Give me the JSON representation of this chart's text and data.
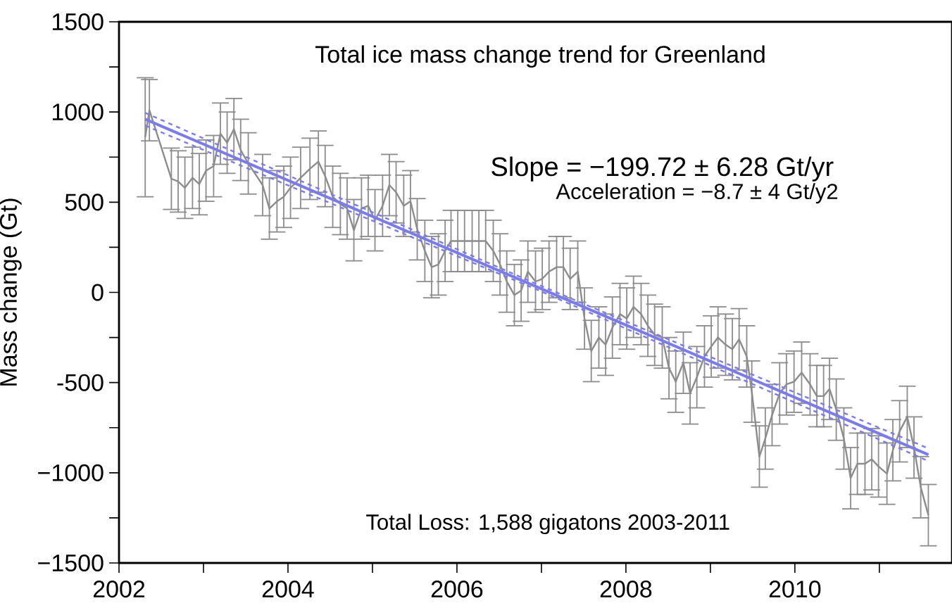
{
  "chart_data": {
    "type": "line",
    "title": "Total ice mass change trend for Greenland",
    "ylabel": "Mass change (Gt)",
    "annotations": [
      "Slope = −199.72 ± 6.28 Gt/yr",
      "Acceleration = −8.7 ± 4 Gt/y2",
      "Total Loss: 1,588 gigatons 2003-2011"
    ],
    "xlim": [
      2002,
      2011.86
    ],
    "ylim": [
      -1500,
      1500
    ],
    "xticks": [
      2002,
      {
        "value": 2003,
        "label": null
      },
      2004,
      {
        "value": 2005,
        "label": null
      },
      2006,
      {
        "value": 2007,
        "label": null
      },
      2008,
      {
        "value": 2009,
        "label": null
      },
      2010,
      {
        "value": 2011,
        "label": null
      }
    ],
    "yticks": [
      {
        "value": -1500,
        "label": "−1500"
      },
      {
        "value": -1250,
        "label": null
      },
      {
        "value": -1000,
        "label": "−1000"
      },
      {
        "value": -750,
        "label": null
      },
      {
        "value": -500,
        "label": "-500"
      },
      {
        "value": -250,
        "label": null
      },
      0,
      {
        "value": 250,
        "label": null
      },
      500,
      {
        "value": 750,
        "label": null
      },
      1000,
      {
        "value": 1250,
        "label": null
      },
      1500
    ],
    "marker": "none",
    "line_style": "solid",
    "series": [
      {
        "color": "#8c8c8c",
        "x": [
          2002.31,
          2002.36,
          2002.62,
          2002.7,
          2002.78,
          2002.87,
          2002.95,
          2003.03,
          2003.12,
          2003.2,
          2003.28,
          2003.36,
          2003.44,
          2003.53,
          2003.7,
          2003.78,
          2003.87,
          2003.95,
          2004.03,
          2004.15,
          2004.26,
          2004.36,
          2004.44,
          2004.53,
          2004.62,
          2004.7,
          2004.78,
          2004.87,
          2004.95,
          2005.03,
          2005.12,
          2005.2,
          2005.28,
          2005.37,
          2005.45,
          2005.53,
          2005.62,
          2005.7,
          2005.78,
          2005.86,
          2005.93,
          2006.01,
          2006.09,
          2006.18,
          2006.26,
          2006.34,
          2006.43,
          2006.51,
          2006.59,
          2006.68,
          2006.76,
          2006.84,
          2006.93,
          2007.01,
          2007.09,
          2007.18,
          2007.26,
          2007.34,
          2007.43,
          2007.51,
          2007.59,
          2007.68,
          2007.76,
          2007.84,
          2007.93,
          2008.01,
          2008.09,
          2008.18,
          2008.26,
          2008.34,
          2008.43,
          2008.51,
          2008.59,
          2008.68,
          2008.76,
          2008.84,
          2008.93,
          2009.01,
          2009.09,
          2009.18,
          2009.26,
          2009.34,
          2009.43,
          2009.49,
          2009.58,
          2009.65,
          2009.73,
          2009.82,
          2009.9,
          2009.99,
          2010.08,
          2010.18,
          2010.26,
          2010.34,
          2010.41,
          2010.49,
          2010.58,
          2010.66,
          2010.74,
          2010.83,
          2010.91,
          2010.99,
          2011.09,
          2011.16,
          2011.24,
          2011.33,
          2011.41,
          2011.49,
          2011.58
        ],
        "values": [
          860,
          1010,
          630,
          615,
          580,
          635,
          600,
          675,
          700,
          880,
          830,
          905,
          790,
          715,
          595,
          465,
          505,
          530,
          580,
          635,
          685,
          725,
          645,
          530,
          490,
          465,
          345,
          465,
          480,
          400,
          480,
          595,
          555,
          480,
          505,
          350,
          230,
          140,
          155,
          230,
          285,
          285,
          285,
          285,
          285,
          285,
          230,
          155,
          60,
          -15,
          10,
          115,
          60,
          75,
          115,
          140,
          140,
          75,
          115,
          -145,
          -325,
          -250,
          -290,
          -195,
          -120,
          -145,
          -80,
          -120,
          -185,
          -235,
          -250,
          -420,
          -495,
          -390,
          -560,
          -470,
          -355,
          -300,
          -250,
          -290,
          -315,
          -260,
          -355,
          -550,
          -910,
          -810,
          -680,
          -560,
          -510,
          -495,
          -445,
          -510,
          -575,
          -575,
          -535,
          -650,
          -810,
          -1030,
          -950,
          -950,
          -925,
          -965,
          -1005,
          -875,
          -770,
          -690,
          -860,
          -1080,
          -1235
        ],
        "errors": [
          330,
          170,
          170,
          170,
          170,
          170,
          170,
          170,
          170,
          170,
          170,
          170,
          170,
          170,
          170,
          170,
          170,
          170,
          170,
          170,
          170,
          170,
          170,
          170,
          170,
          170,
          170,
          170,
          170,
          170,
          170,
          170,
          170,
          170,
          170,
          170,
          170,
          170,
          170,
          170,
          170,
          170,
          170,
          170,
          170,
          170,
          170,
          170,
          170,
          170,
          170,
          170,
          170,
          170,
          170,
          170,
          170,
          170,
          170,
          170,
          170,
          170,
          170,
          170,
          170,
          170,
          170,
          170,
          170,
          170,
          170,
          170,
          170,
          170,
          170,
          170,
          170,
          170,
          170,
          170,
          170,
          170,
          170,
          170,
          170,
          170,
          170,
          170,
          170,
          170,
          170,
          170,
          170,
          170,
          170,
          170,
          170,
          170,
          170,
          170,
          170,
          170,
          170,
          170,
          170,
          170,
          170,
          170,
          170
        ]
      },
      {
        "type": "line",
        "color": "#7b7bea",
        "x": [
          2002.31,
          2006.95,
          2011.58
        ],
        "values": [
          960,
          30,
          -900
        ]
      },
      {
        "type": "line",
        "color": "#7b7bea",
        "line_style": "dashed",
        "x": [
          2002.31,
          2006.95,
          2011.58
        ],
        "values": [
          925,
          15,
          -935
        ]
      },
      {
        "type": "line",
        "color": "#7b7bea",
        "line_style": "dashed",
        "x": [
          2002.31,
          2006.95,
          2011.58
        ],
        "values": [
          995,
          45,
          -865
        ]
      }
    ]
  }
}
